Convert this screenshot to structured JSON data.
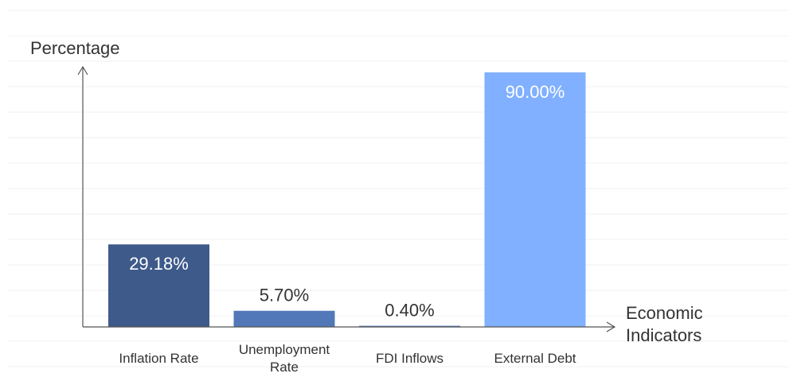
{
  "chart_data": {
    "type": "bar",
    "categories": [
      "Inflation Rate",
      "Unemployment Rate",
      "FDI Inflows",
      "External Debt"
    ],
    "category_lines": [
      [
        "Inflation Rate"
      ],
      [
        "Unemployment",
        "Rate"
      ],
      [
        "FDI Inflows"
      ],
      [
        "External Debt"
      ]
    ],
    "values": [
      29.18,
      5.7,
      0.4,
      90.0
    ],
    "value_labels": [
      "29.18%",
      "5.70%",
      "0.40%",
      "90.00%"
    ],
    "colors": [
      "#3d5a8a",
      "#5278b8",
      "#5278b8",
      "#80b0ff"
    ],
    "ylabel": "Percentage",
    "xlabel_lines": [
      "Economic",
      "Indicators"
    ],
    "ylim": [
      0,
      90
    ],
    "grid": true
  }
}
